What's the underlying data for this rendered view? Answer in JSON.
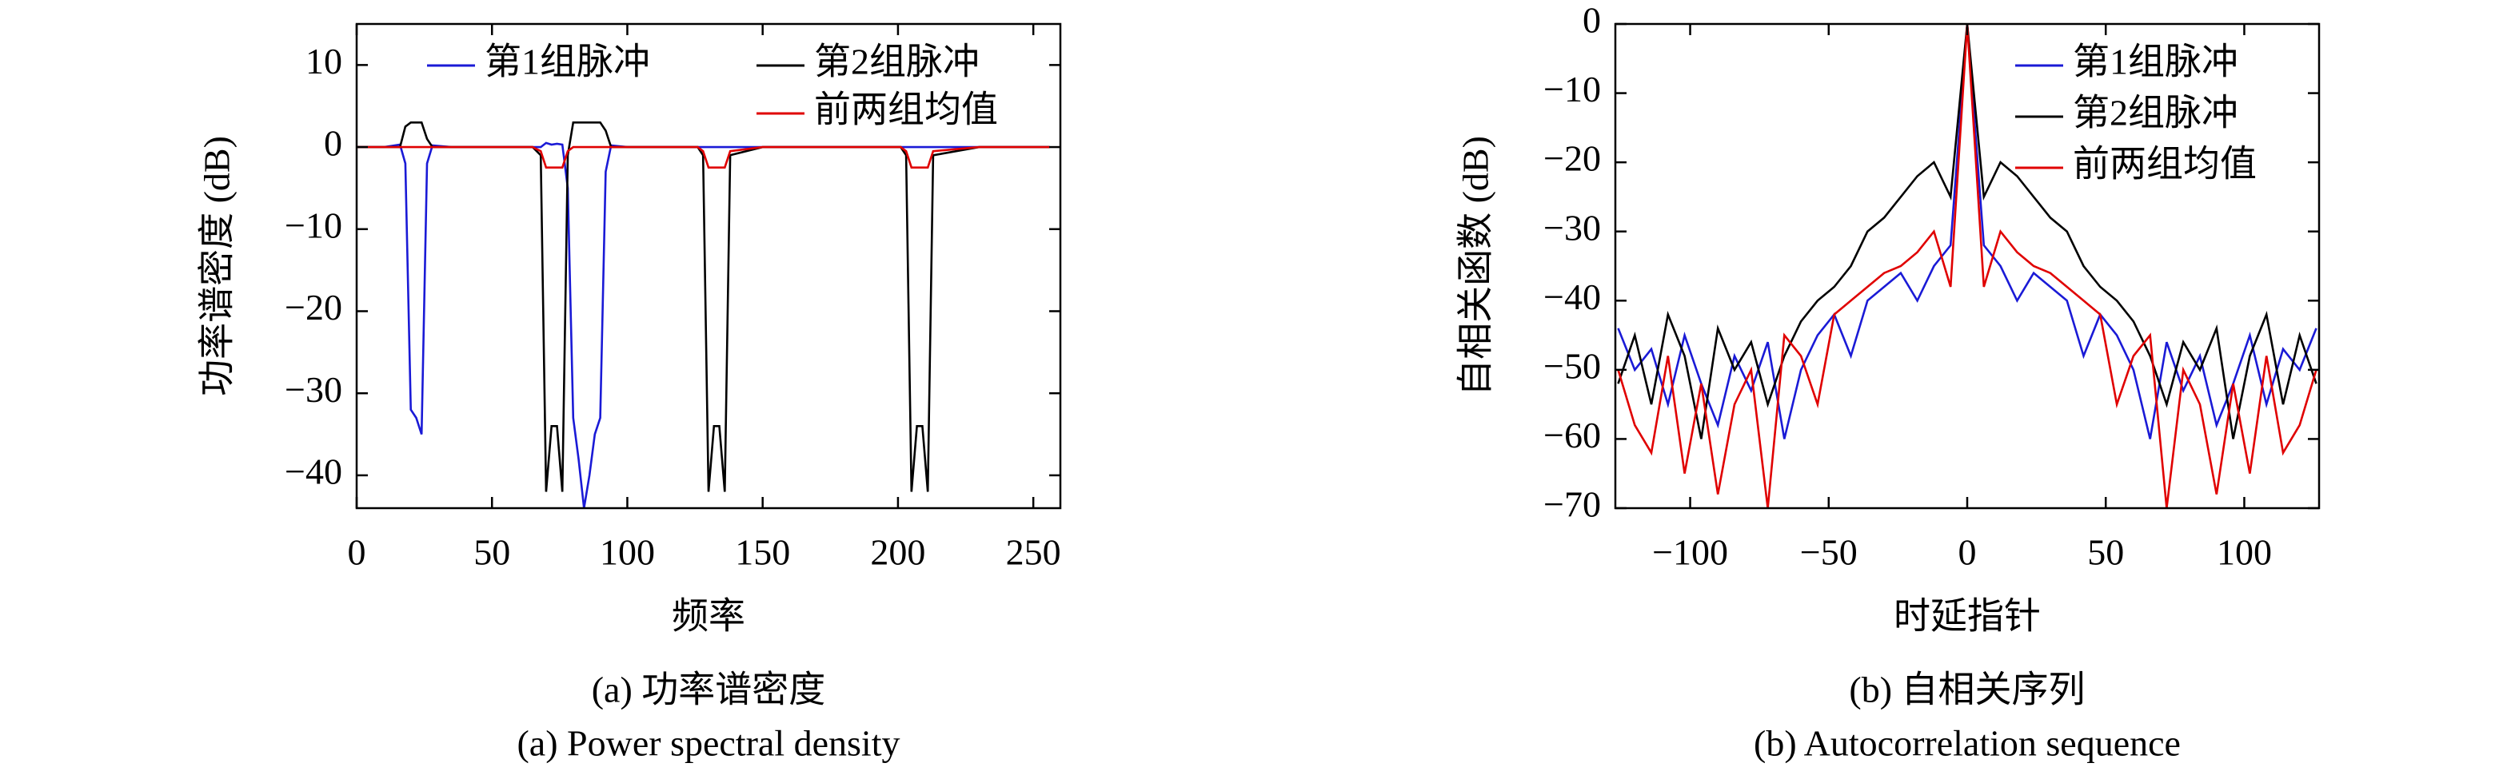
{
  "chart_data": [
    {
      "type": "line",
      "xlabel": "频率",
      "ylabel": "功率谱密度 (dB)",
      "caption": "(a) 功率谱密度",
      "caption_en": "(a) Power spectral density",
      "x": [
        0,
        10,
        16,
        18,
        20,
        22,
        24,
        26,
        28,
        35,
        50,
        65,
        68,
        70,
        72,
        74,
        76,
        78,
        80,
        82,
        84,
        86,
        88,
        90,
        92,
        94,
        100,
        115,
        126,
        128,
        130,
        132,
        134,
        136,
        138,
        150,
        180,
        201,
        203,
        205,
        207,
        209,
        211,
        213,
        230,
        256
      ],
      "series": [
        {
          "name": "第1组脉冲",
          "color": "#1a1ad6",
          "values": [
            0,
            0,
            0.3,
            -2,
            -32,
            -33,
            -35,
            -2,
            0.2,
            0,
            0,
            0,
            0,
            0.5,
            0.3,
            0.4,
            0.3,
            -5,
            -33,
            -38,
            -44,
            -40,
            -35,
            -33,
            -3,
            0.2,
            0,
            0,
            0,
            0,
            0,
            0,
            0,
            0,
            0,
            0,
            0,
            0,
            0,
            0,
            0,
            0,
            0,
            0,
            0,
            0
          ]
        },
        {
          "name": "第2组脉冲",
          "color": "#000000",
          "values": [
            0,
            0,
            0,
            2.5,
            3,
            3,
            3,
            1,
            0,
            0,
            0,
            0,
            -1,
            -42,
            -34,
            -34,
            -42,
            -1,
            3,
            3,
            3,
            3,
            3,
            3,
            2,
            0,
            0,
            0,
            0,
            -1,
            -42,
            -34,
            -34,
            -42,
            -1,
            0,
            0,
            0,
            -1,
            -42,
            -34,
            -34,
            -42,
            -1,
            0,
            0
          ]
        },
        {
          "name": "前两组均值",
          "color": "#e00000",
          "values": [
            0,
            0,
            0,
            0,
            0,
            0,
            0,
            0,
            0,
            0,
            0,
            0,
            -0.5,
            -2.5,
            -2.5,
            -2.5,
            -2.5,
            -0.5,
            0,
            0,
            0,
            0,
            0,
            0,
            0,
            0,
            0,
            0,
            0,
            -0.5,
            -2.5,
            -2.5,
            -2.5,
            -2.5,
            -0.5,
            0,
            0,
            0,
            -0.5,
            -2.5,
            -2.5,
            -2.5,
            -2.5,
            -0.5,
            0,
            0
          ]
        }
      ],
      "xlim": [
        0,
        260
      ],
      "xticks": [
        0,
        50,
        100,
        150,
        200,
        250
      ],
      "ylim": [
        -44,
        15
      ],
      "yticks": [
        {
          "value": -40,
          "label": "−40"
        },
        {
          "value": -30,
          "label": "−30"
        },
        {
          "value": -20,
          "label": "−20"
        },
        {
          "value": -10,
          "label": "−10"
        },
        0,
        10
      ],
      "legend": "upper center"
    },
    {
      "type": "line",
      "xlabel": "时延指针",
      "ylabel": "自相关函数 (dB)",
      "caption": "(b) 自相关序列",
      "caption_en": "(b) Autocorrelation sequence",
      "x": [
        -126,
        -120,
        -114,
        -108,
        -102,
        -96,
        -90,
        -84,
        -78,
        -72,
        -66,
        -60,
        -54,
        -48,
        -42,
        -36,
        -30,
        -24,
        -18,
        -12,
        -6,
        0,
        6,
        12,
        18,
        24,
        30,
        36,
        42,
        48,
        54,
        60,
        66,
        72,
        78,
        84,
        90,
        96,
        102,
        108,
        114,
        120,
        126
      ],
      "series": [
        {
          "name": "第1组脉冲",
          "color": "#1a1ad6",
          "values": [
            -44,
            -50,
            -47,
            -55,
            -45,
            -52,
            -58,
            -48,
            -53,
            -46,
            -60,
            -50,
            -45,
            -42,
            -48,
            -40,
            -38,
            -36,
            -40,
            -35,
            -32,
            0,
            -32,
            -35,
            -40,
            -36,
            -38,
            -40,
            -48,
            -42,
            -45,
            -50,
            -60,
            -46,
            -53,
            -48,
            -58,
            -52,
            -45,
            -55,
            -47,
            -50,
            -44
          ]
        },
        {
          "name": "第2组脉冲",
          "color": "#000000",
          "values": [
            -52,
            -45,
            -55,
            -42,
            -48,
            -60,
            -44,
            -50,
            -46,
            -55,
            -48,
            -43,
            -40,
            -38,
            -35,
            -30,
            -28,
            -25,
            -22,
            -20,
            -25,
            0,
            -25,
            -20,
            -22,
            -25,
            -28,
            -30,
            -35,
            -38,
            -40,
            -43,
            -48,
            -55,
            -46,
            -50,
            -44,
            -60,
            -48,
            -42,
            -55,
            -45,
            -52
          ]
        },
        {
          "name": "前两组均值",
          "color": "#e00000",
          "values": [
            -50,
            -58,
            -62,
            -48,
            -65,
            -52,
            -68,
            -55,
            -50,
            -70,
            -45,
            -48,
            -55,
            -42,
            -40,
            -38,
            -36,
            -35,
            -33,
            -30,
            -38,
            0,
            -38,
            -30,
            -33,
            -35,
            -36,
            -38,
            -40,
            -42,
            -55,
            -48,
            -45,
            -70,
            -50,
            -55,
            -68,
            -52,
            -65,
            -48,
            -62,
            -58,
            -50
          ]
        }
      ],
      "xlim": [
        -127,
        127
      ],
      "xticks": [
        {
          "value": -100,
          "label": "−100"
        },
        {
          "value": -50,
          "label": "−50"
        },
        0,
        50,
        100
      ],
      "ylim": [
        -70,
        0
      ],
      "yticks": [
        {
          "value": -70,
          "label": "−70"
        },
        {
          "value": -60,
          "label": "−60"
        },
        {
          "value": -50,
          "label": "−50"
        },
        {
          "value": -40,
          "label": "−40"
        },
        {
          "value": -30,
          "label": "−30"
        },
        {
          "value": -20,
          "label": "−20"
        },
        {
          "value": -10,
          "label": "−10"
        },
        0
      ],
      "legend": "upper right"
    }
  ]
}
